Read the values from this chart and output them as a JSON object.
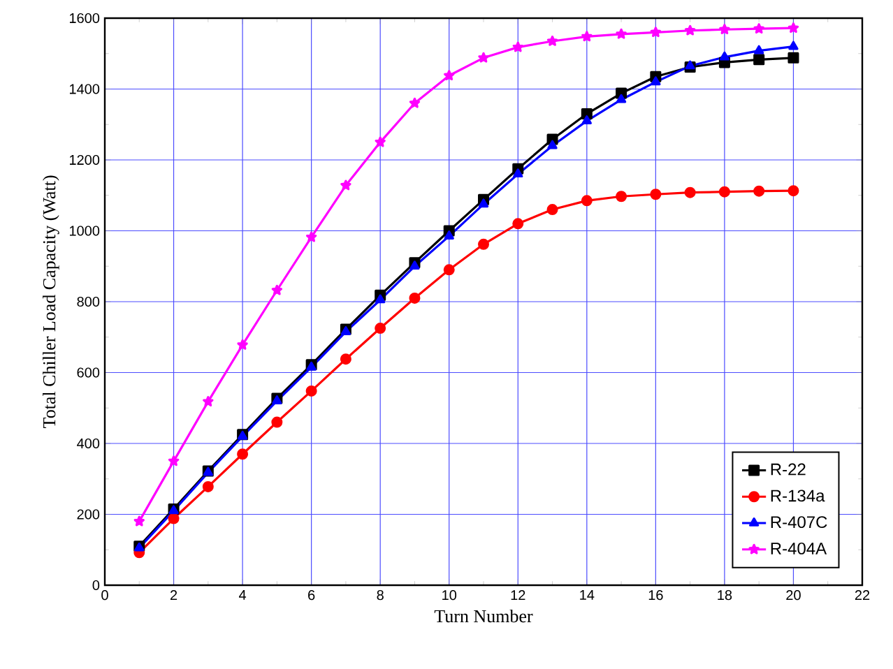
{
  "chart_data": {
    "type": "line",
    "xlabel": "Turn Number",
    "ylabel": "Total Chiller Load Capacity  (Watt)",
    "x": [
      1,
      2,
      3,
      4,
      5,
      6,
      7,
      8,
      9,
      10,
      11,
      12,
      13,
      14,
      15,
      16,
      17,
      18,
      19,
      20
    ],
    "series": [
      {
        "name": "R-22",
        "color": "#000000",
        "marker": "square",
        "values": [
          110,
          215,
          322,
          425,
          527,
          622,
          722,
          818,
          910,
          1000,
          1088,
          1175,
          1258,
          1330,
          1388,
          1435,
          1462,
          1475,
          1483,
          1488
        ]
      },
      {
        "name": "R-134a",
        "color": "#ff0000",
        "marker": "circle",
        "values": [
          92,
          188,
          278,
          370,
          460,
          548,
          638,
          725,
          810,
          890,
          962,
          1020,
          1060,
          1085,
          1097,
          1103,
          1108,
          1110,
          1112,
          1113
        ]
      },
      {
        "name": "R-407C",
        "color": "#0000ff",
        "marker": "triangle",
        "values": [
          105,
          210,
          318,
          420,
          520,
          615,
          715,
          805,
          900,
          985,
          1075,
          1160,
          1240,
          1310,
          1370,
          1420,
          1465,
          1490,
          1508,
          1520
        ]
      },
      {
        "name": "R-404A",
        "color": "#ff00ff",
        "marker": "star",
        "values": [
          180,
          350,
          518,
          678,
          832,
          982,
          1128,
          1250,
          1360,
          1438,
          1488,
          1518,
          1535,
          1548,
          1555,
          1560,
          1565,
          1568,
          1570,
          1572
        ]
      }
    ],
    "xlim": [
      0,
      22
    ],
    "xticks": [
      0,
      2,
      4,
      6,
      8,
      10,
      12,
      14,
      16,
      18,
      20,
      22
    ],
    "ylim": [
      0,
      1600
    ],
    "yticks": [
      0,
      200,
      400,
      600,
      800,
      1000,
      1200,
      1400,
      1600
    ],
    "grid": true,
    "legend": "bottom right",
    "line_style": "solid"
  }
}
